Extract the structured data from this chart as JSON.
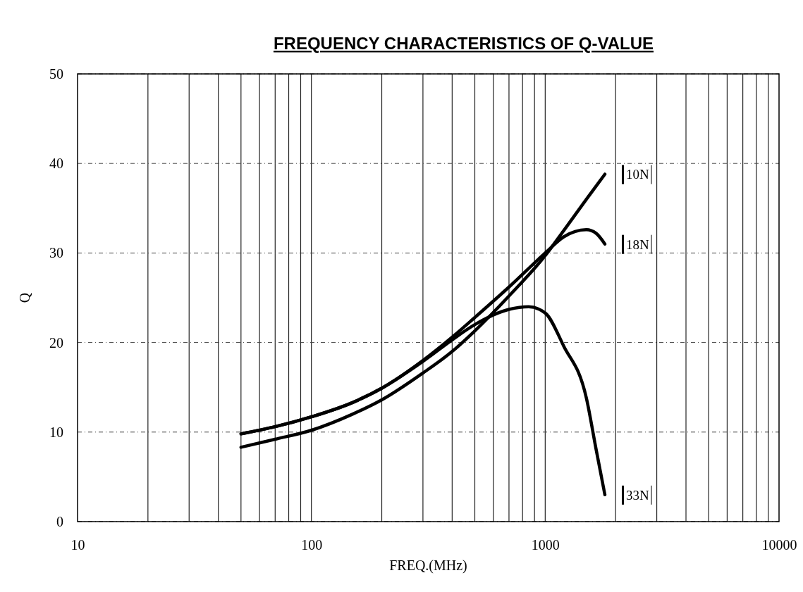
{
  "chart_data": {
    "type": "line",
    "title": "FREQUENCY CHARACTERISTICS OF Q-VALUE",
    "xlabel": "FREQ.(MHz)",
    "ylabel": "Q",
    "log": "x",
    "xlim": [
      10,
      10000
    ],
    "xticks": [
      10,
      100,
      1000,
      10000
    ],
    "ylim": [
      0,
      50
    ],
    "yticks": [
      0,
      10,
      20,
      30,
      40,
      50
    ],
    "grid": true,
    "legend": "right",
    "marker": "none",
    "line_style": "solid",
    "series": [
      {
        "name": "10N",
        "color": "#000000",
        "x": [
          50,
          70,
          100,
          150,
          200,
          300,
          400,
          500,
          700,
          1000,
          1200,
          1500,
          1800
        ],
        "values": [
          8.3,
          9.2,
          10.2,
          12.0,
          13.6,
          16.6,
          19.0,
          21.3,
          25.2,
          29.7,
          32.5,
          36.0,
          38.8
        ]
      },
      {
        "name": "18N",
        "color": "#000000",
        "x": [
          50,
          70,
          100,
          150,
          200,
          300,
          400,
          500,
          700,
          1000,
          1200,
          1500,
          1650,
          1800
        ],
        "values": [
          9.8,
          10.6,
          11.7,
          13.3,
          14.9,
          18.0,
          20.6,
          22.8,
          26.2,
          30.0,
          31.8,
          32.6,
          32.2,
          31.0
        ]
      },
      {
        "name": "33N",
        "color": "#000000",
        "x": [
          50,
          70,
          100,
          150,
          200,
          300,
          400,
          500,
          700,
          850,
          1000,
          1200,
          1500,
          1650,
          1800
        ],
        "values": [
          9.8,
          10.6,
          11.7,
          13.3,
          14.9,
          17.9,
          20.3,
          22.0,
          23.7,
          24.0,
          23.3,
          19.6,
          13.8,
          8.1,
          3.0
        ]
      }
    ]
  }
}
